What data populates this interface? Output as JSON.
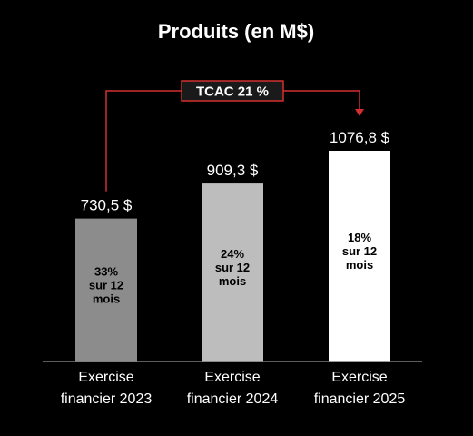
{
  "chart_data": {
    "type": "bar",
    "title": "Produits (en M$)",
    "categories": [
      "Exercise financier 2023",
      "Exercise financier 2024",
      "Exercise financier 2025"
    ],
    "category_lines": [
      [
        "Exercise",
        "financier 2023"
      ],
      [
        "Exercise",
        "financier 2024"
      ],
      [
        "Exercise",
        "financier 2025"
      ]
    ],
    "values": [
      730.5,
      909.3,
      1076.8
    ],
    "value_labels": [
      "730,5 $",
      "909,3 $",
      "1076,8 $"
    ],
    "bar_colors": [
      "#8c8c8c",
      "#bdbdbd",
      "#ffffff"
    ],
    "growth_labels": [
      [
        "33%",
        "sur 12",
        "mois"
      ],
      [
        "24%",
        "sur 12",
        "mois"
      ],
      [
        "18%",
        "sur 12",
        "mois"
      ]
    ],
    "cagr_label": "TCAC 21 %",
    "accent_color": "#d32f2f",
    "axis_color": "#7a7a7a",
    "ylim": [
      0,
      1076.8
    ]
  }
}
